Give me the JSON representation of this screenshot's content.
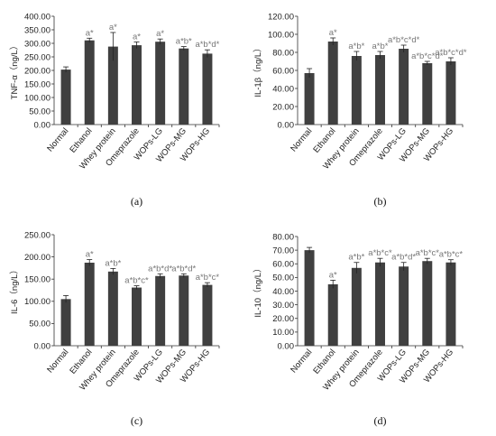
{
  "chart_data": [
    {
      "type": "bar",
      "panel_label": "(a)",
      "ylabel": "TNF-α（ng/L）",
      "categories": [
        "Normal",
        "Ethanol",
        "Whey protein",
        "Omeprazole",
        "WOPs-LG",
        "WOPs-MG",
        "WOPs-HG"
      ],
      "values": [
        203,
        311,
        288,
        293,
        306,
        281,
        262
      ],
      "errors": [
        10,
        8,
        52,
        12,
        10,
        7,
        14
      ],
      "annotations": [
        "",
        "a*",
        "a*",
        "a*",
        "a*",
        "a*b*",
        "a*b*d*"
      ],
      "ylim": [
        0,
        400
      ],
      "yticks": [
        "0.00",
        "50.00",
        "100.00",
        "150.00",
        "200.00",
        "250.00",
        "300.00",
        "350.00",
        "400.00"
      ],
      "bar_color": "#404040"
    },
    {
      "type": "bar",
      "panel_label": "(b)",
      "ylabel": "IL-1β（ng/L）",
      "categories": [
        "Normal",
        "Ethanol",
        "Whey protein",
        "Omeprazole",
        "WOPs-LG",
        "WOPs-MG",
        "WOPs-HG"
      ],
      "values": [
        57,
        92,
        76,
        77,
        84,
        68,
        70
      ],
      "errors": [
        5,
        4,
        5,
        4,
        4,
        2,
        4
      ],
      "annotations": [
        "",
        "a*",
        "a*b*",
        "a*b*",
        "a*b*c*d*",
        "a*b*c*d*",
        "a*b*c*d*"
      ],
      "ylim": [
        0,
        120
      ],
      "yticks": [
        "0.00",
        "20.00",
        "40.00",
        "60.00",
        "80.00",
        "100.00",
        "120.00"
      ],
      "bar_color": "#404040"
    },
    {
      "type": "bar",
      "panel_label": "(c)",
      "ylabel": "IL-6（ng/L）",
      "categories": [
        "Normal",
        "Ethanol",
        "Whey protein",
        "Omeprazole",
        "WOPs-LG",
        "WOPs-MG",
        "WOPs-HG"
      ],
      "values": [
        105,
        187,
        167,
        131,
        157,
        158,
        137
      ],
      "errors": [
        8,
        7,
        7,
        4,
        5,
        4,
        5
      ],
      "annotations": [
        "",
        "a*",
        "a*b*",
        "a*b*c*",
        "a*b*d*",
        "a*b*d*",
        "a*b*c*"
      ],
      "ylim": [
        0,
        250
      ],
      "yticks": [
        "0.00",
        "50.00",
        "100.00",
        "150.00",
        "200.00",
        "250.00"
      ],
      "bar_color": "#404040"
    },
    {
      "type": "bar",
      "panel_label": "(d)",
      "ylabel": "IL-10（ng/L）",
      "categories": [
        "Normal",
        "Ethanol",
        "Whey protein",
        "Omeprazole",
        "WOPs-LG",
        "WOPs-MG",
        "WOPs-HG"
      ],
      "values": [
        70,
        45,
        57,
        61,
        58,
        62,
        61
      ],
      "errors": [
        2,
        3,
        4,
        3,
        3,
        2,
        2
      ],
      "annotations": [
        "",
        "a*",
        "a*b*",
        "a*b*c*",
        "a*b*d*",
        "a*b*c*",
        "a*b*c*"
      ],
      "ylim": [
        0,
        80
      ],
      "yticks": [
        "0.00",
        "10.00",
        "20.00",
        "30.00",
        "40.00",
        "50.00",
        "60.00",
        "70.00",
        "80.00"
      ],
      "bar_color": "#404040"
    }
  ]
}
